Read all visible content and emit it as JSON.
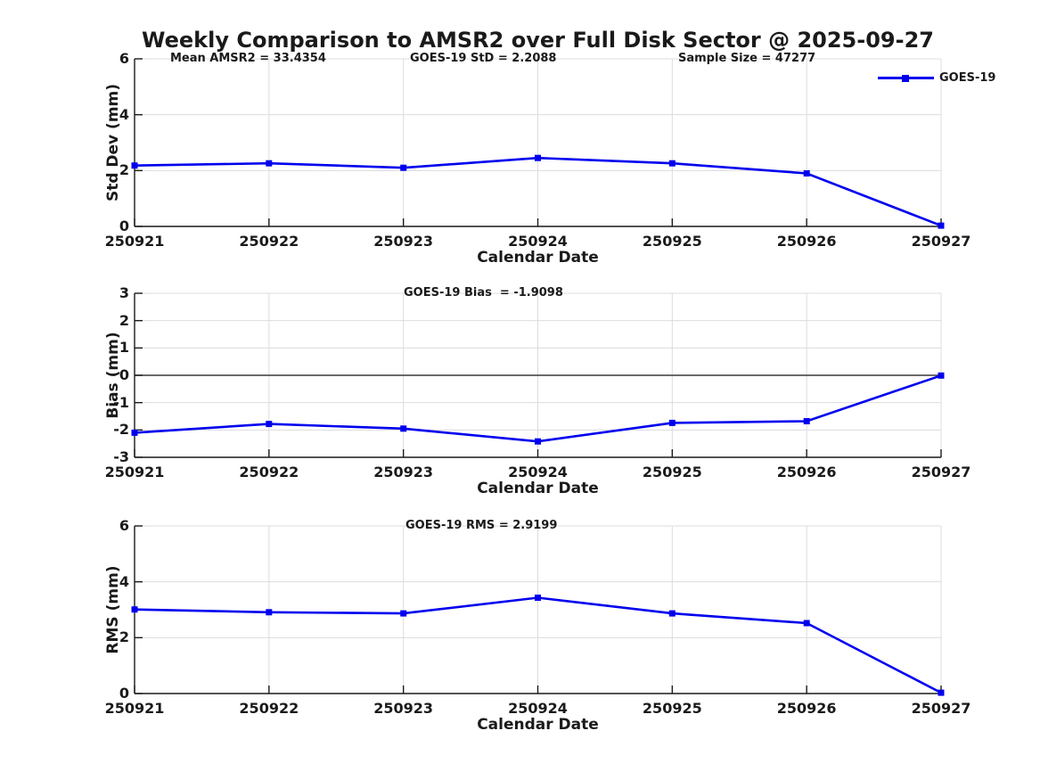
{
  "title": "Weekly Comparison to AMSR2 over Full Disk Sector @ 2025-09-27",
  "colors": {
    "series_blue": "#0000ee",
    "axis": "#1a1a1a",
    "grid": "#dcdcdc",
    "zero_line": "#3a3a3a",
    "background": "#ffffff"
  },
  "chart_data": [
    {
      "type": "line",
      "name": "std-dev",
      "categories": [
        "250921",
        "250922",
        "250923",
        "250924",
        "250925",
        "250926",
        "250927"
      ],
      "series": [
        {
          "name": "GOES-19",
          "values": [
            2.18,
            2.26,
            2.1,
            2.45,
            2.26,
            1.9,
            0.03
          ]
        }
      ],
      "xlabel": "Calendar Date",
      "ylabel": "Std Dev (mm)",
      "ylim": [
        0,
        6
      ],
      "yticks": [
        0,
        2,
        4,
        6
      ],
      "grid": true,
      "annotations": [
        "Mean AMSR2 = 33.4354",
        "GOES-19 StD = 2.2088",
        "Sample Size = 47277"
      ],
      "legend": {
        "label": "GOES-19",
        "position": "northeast-outside"
      }
    },
    {
      "type": "line",
      "name": "bias",
      "categories": [
        "250921",
        "250922",
        "250923",
        "250924",
        "250925",
        "250926",
        "250927"
      ],
      "series": [
        {
          "name": "GOES-19",
          "values": [
            -2.1,
            -1.78,
            -1.95,
            -2.42,
            -1.74,
            -1.68,
            -0.01
          ]
        }
      ],
      "xlabel": "Calendar Date",
      "ylabel": "Bias (mm)",
      "ylim": [
        -3,
        3
      ],
      "yticks": [
        -3,
        -2,
        -1,
        0,
        1,
        2,
        3
      ],
      "grid": true,
      "zero_line": true,
      "annotations": [
        "GOES-19 Bias  = -1.9098"
      ]
    },
    {
      "type": "line",
      "name": "rms",
      "categories": [
        "250921",
        "250922",
        "250923",
        "250924",
        "250925",
        "250926",
        "250927"
      ],
      "series": [
        {
          "name": "GOES-19",
          "values": [
            3.01,
            2.91,
            2.87,
            3.43,
            2.87,
            2.52,
            0.03
          ]
        }
      ],
      "xlabel": "Calendar Date",
      "ylabel": "RMS (mm)",
      "ylim": [
        0,
        6
      ],
      "yticks": [
        0,
        2,
        4,
        6
      ],
      "grid": true,
      "annotations": [
        "GOES-19 RMS = 2.9199"
      ]
    }
  ]
}
